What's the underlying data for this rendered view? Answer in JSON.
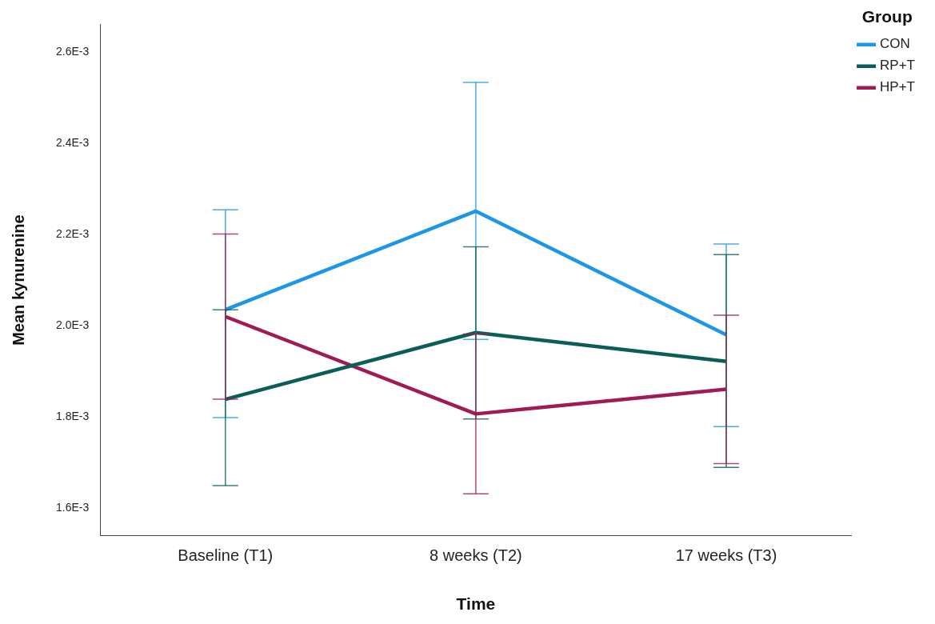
{
  "chart_data": {
    "type": "line",
    "xlabel": "Time",
    "ylabel": "Mean kynurenine",
    "legend_title": "Group",
    "categories": [
      "Baseline (T1)",
      "8 weeks (T2)",
      "17 weeks (T3)"
    ],
    "series": [
      {
        "name": "CON",
        "color": "#1e96e6",
        "values": [
          0.002035,
          0.002251,
          0.00198
        ],
        "errors": [
          [
            0.001799,
            0.002254
          ],
          [
            0.00197,
            0.002533
          ],
          [
            0.001779,
            0.002179
          ]
        ]
      },
      {
        "name": "RP+T",
        "color": "#0b5e57",
        "values": [
          0.001839,
          0.001985,
          0.001922
        ],
        "errors": [
          [
            0.00165,
            0.002035
          ],
          [
            0.001796,
            0.002173
          ],
          [
            0.00169,
            0.002156
          ]
        ]
      },
      {
        "name": "HP+T",
        "color": "#a01a56",
        "values": [
          0.00202,
          0.001807,
          0.001861
        ],
        "errors": [
          [
            0.001839,
            0.002201
          ],
          [
            0.001632,
            0.001982
          ],
          [
            0.001698,
            0.002023
          ]
        ]
      }
    ],
    "ylim": [
      0.00154,
      0.00266
    ],
    "yticks": [
      {
        "value": 0.0016,
        "label": "1.6E-3"
      },
      {
        "value": 0.0018,
        "label": "1.8E-3"
      },
      {
        "value": 0.002,
        "label": "2.0E-3"
      },
      {
        "value": 0.0022,
        "label": "2.2E-3"
      },
      {
        "value": 0.0024,
        "label": "2.4E-3"
      },
      {
        "value": 0.0026,
        "label": "2.6E-3"
      }
    ],
    "grid": false,
    "legend": "top right",
    "marker": "none",
    "line_style": "solid"
  }
}
